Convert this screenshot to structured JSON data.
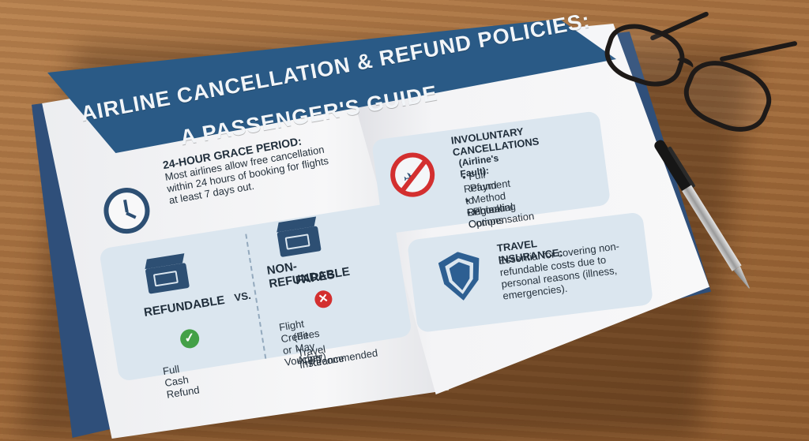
{
  "title": {
    "line1": "AIRLINE CANCELLATION & REFUND POLICIES:",
    "line2": "A PASSENGER'S GUIDE"
  },
  "grace_period": {
    "heading": "24-HOUR GRACE PERIOD:",
    "text": "Most airlines allow free cancellation within 24 hours of booking for flights at least 7 days out.",
    "icon": "clock-icon"
  },
  "comparison": {
    "refundable": {
      "label": "REFUNDABLE",
      "result": "Full Cash Refund",
      "icon": "ticket-icon",
      "status_icon": "check-icon"
    },
    "vs_label": "VS.",
    "non_refundable": {
      "label_line1": "NON-REFUNDABLE",
      "label_line2": "FARES",
      "result_line1": "Flight Credit or Voucher",
      "result_line2": "(Fees May Apply)",
      "result_line3": "Travel Insurance",
      "result_line4": "Recommended",
      "icon": "ticket-icon",
      "status_icon": "x-icon"
    }
  },
  "involuntary": {
    "heading_line1": "INVOLUNTARY",
    "heading_line2": "CANCELLATIONS",
    "heading_line3": "(Airline's Fault):",
    "items": [
      "• Full Refund to Original",
      "Payment Method",
      "• Rebooking Options",
      "• Potential Compensation"
    ],
    "icon": "no-flight-icon"
  },
  "insurance": {
    "heading": "TRAVEL INSURANCE:",
    "text": "Essential for covering non-refundable costs due to personal reasons (illness, emergencies).",
    "icon": "shield-icon"
  },
  "colors": {
    "header_blue": "#2a5a86",
    "panel": "#dbe6ef",
    "icon_blue": "#2d4f73",
    "check_green": "#43a047",
    "alert_red": "#d32f2f",
    "wood": "#a56f3f"
  }
}
